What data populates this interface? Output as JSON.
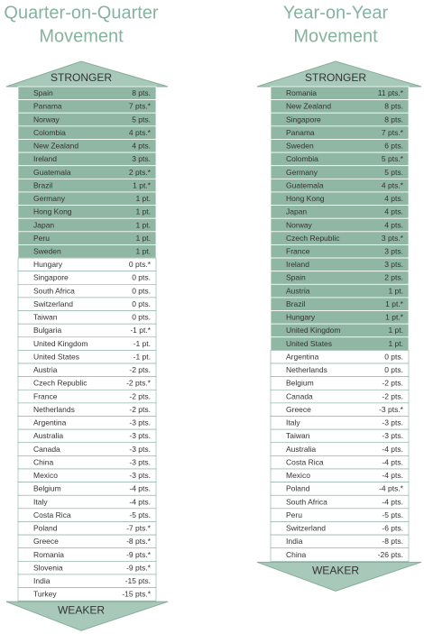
{
  "fill_color": "#90b6a4",
  "arrow_color": "#a8c9b9",
  "border_color": "#86ad9b",
  "panels": [
    {
      "title_lines": [
        "Quarter-on-Quarter",
        "Movement"
      ],
      "top_label": "STRONGER",
      "bottom_label": "WEAKER",
      "rows": [
        [
          "Spain",
          "8 pts."
        ],
        [
          "Panama",
          "7 pts.*"
        ],
        [
          "Norway",
          "5 pts."
        ],
        [
          "Colombia",
          "4 pts.*"
        ],
        [
          "New Zealand",
          "4 pts."
        ],
        [
          "Ireland",
          "3 pts."
        ],
        [
          "Guatemala",
          "2 pts.*"
        ],
        [
          "Brazil",
          "1 pt.*"
        ],
        [
          "Germany",
          "1 pt."
        ],
        [
          "Hong Kong",
          "1 pt."
        ],
        [
          "Japan",
          "1 pt."
        ],
        [
          "Peru",
          "1 pt."
        ],
        [
          "Sweden",
          "1 pt."
        ],
        [
          "Hungary",
          "0 pts.*"
        ],
        [
          "Singapore",
          "0 pts."
        ],
        [
          "South Africa",
          "0 pts."
        ],
        [
          "Switzerland",
          "0 pts."
        ],
        [
          "Taiwan",
          "0 pts."
        ],
        [
          "Bulgaria",
          "-1 pt.*"
        ],
        [
          "United Kingdom",
          "-1 pt."
        ],
        [
          "United States",
          "-1 pt."
        ],
        [
          "Austria",
          "-2 pts."
        ],
        [
          "Czech Republic",
          "-2 pts.*"
        ],
        [
          "France",
          "-2 pts."
        ],
        [
          "Netherlands",
          "-2 pts."
        ],
        [
          "Argentina",
          "-3 pts."
        ],
        [
          "Australia",
          "-3 pts."
        ],
        [
          "Canada",
          "-3 pts."
        ],
        [
          "China",
          "-3 pts."
        ],
        [
          "Mexico",
          "-3 pts."
        ],
        [
          "Belgium",
          "-4 pts."
        ],
        [
          "Italy",
          "-4 pts."
        ],
        [
          "Costa Rica",
          "-5 pts."
        ],
        [
          "Poland",
          "-7 pts.*"
        ],
        [
          "Greece",
          "-8 pts.*"
        ],
        [
          "Romania",
          "-9 pts.*"
        ],
        [
          "Slovenia",
          "-9 pts.*"
        ],
        [
          "India",
          "-15 pts."
        ],
        [
          "Turkey",
          "-15 pts.*"
        ]
      ]
    },
    {
      "title_lines": [
        "Year-on-Year",
        "Movement"
      ],
      "top_label": "STRONGER",
      "bottom_label": "WEAKER",
      "rows": [
        [
          "Romania",
          "11 pts.*"
        ],
        [
          "New Zealand",
          "8 pts."
        ],
        [
          "Singapore",
          "8 pts."
        ],
        [
          "Panama",
          "7 pts.*"
        ],
        [
          "Sweden",
          "6 pts."
        ],
        [
          "Colombia",
          "5 pts.*"
        ],
        [
          "Germany",
          "5 pts."
        ],
        [
          "Guatemala",
          "4 pts.*"
        ],
        [
          "Hong Kong",
          "4 pts."
        ],
        [
          "Japan",
          "4 pts."
        ],
        [
          "Norway",
          "4 pts."
        ],
        [
          "Czech Republic",
          "3 pts.*"
        ],
        [
          "France",
          "3 pts."
        ],
        [
          "Ireland",
          "3 pts."
        ],
        [
          "Spain",
          "2 pts."
        ],
        [
          "Austria",
          "1 pt."
        ],
        [
          "Brazil",
          "1 pt.*"
        ],
        [
          "Hungary",
          "1 pt.*"
        ],
        [
          "United Kingdom",
          "1 pt."
        ],
        [
          "United States",
          "1 pt."
        ],
        [
          "Argentina",
          "0 pts."
        ],
        [
          "Netherlands",
          "0 pts."
        ],
        [
          "Belgium",
          "-2 pts."
        ],
        [
          "Canada",
          "-2 pts."
        ],
        [
          "Greece",
          "-3 pts.*"
        ],
        [
          "Italy",
          "-3 pts."
        ],
        [
          "Taiwan",
          "-3 pts."
        ],
        [
          "Australia",
          "-4 pts."
        ],
        [
          "Costa Rica",
          "-4 pts."
        ],
        [
          "Mexico",
          "-4 pts."
        ],
        [
          "Poland",
          "-4 pts.*"
        ],
        [
          "South Africa",
          "-4 pts."
        ],
        [
          "Peru",
          "-5 pts."
        ],
        [
          "Switzerland",
          "-6 pts."
        ],
        [
          "India",
          "-8 pts."
        ],
        [
          "China",
          "-26 pts."
        ]
      ]
    }
  ]
}
